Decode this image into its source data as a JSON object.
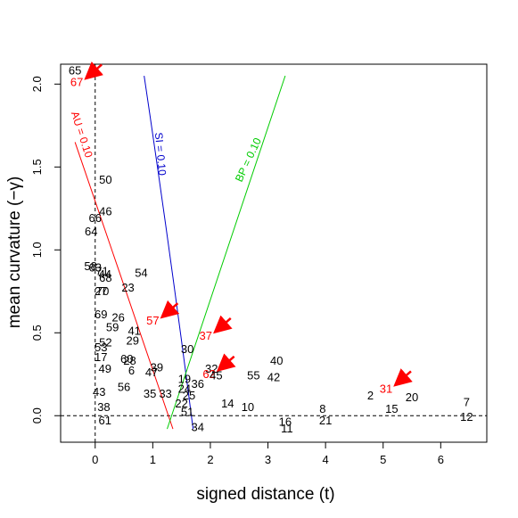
{
  "chart_data": {
    "type": "scatter",
    "title": "",
    "xlabel": "signed distance  (t)",
    "ylabel": "mean curvature  (−γ)",
    "xlim": [
      -0.6,
      6.8
    ],
    "ylim": [
      -0.16,
      2.12
    ],
    "x_ticks": [
      0,
      1,
      2,
      3,
      4,
      5,
      6
    ],
    "y_ticks": [
      0.0,
      0.5,
      1.0,
      1.5,
      2.0
    ],
    "x_tick_labels": [
      "0",
      "1",
      "2",
      "3",
      "4",
      "5",
      "6"
    ],
    "y_tick_labels": [
      "0.0",
      "0.5",
      "1.0",
      "1.5",
      "2.0"
    ],
    "reference_lines": [
      {
        "orientation": "horizontal",
        "value": 0,
        "style": "dashed"
      },
      {
        "orientation": "vertical",
        "value": 0,
        "style": "dashed"
      }
    ],
    "curves": [
      {
        "label": "AU = 0.10",
        "color": "#ff0000",
        "points": [
          [
            -0.35,
            1.65
          ],
          [
            1.35,
            -0.08
          ]
        ]
      },
      {
        "label": "SI = 0.10",
        "color": "#0000cc",
        "points": [
          [
            0.85,
            2.05
          ],
          [
            1.3,
            1.0
          ],
          [
            1.7,
            -0.08
          ]
        ]
      },
      {
        "label": "BP = 0.10",
        "color": "#00cc00",
        "points": [
          [
            1.25,
            -0.08
          ],
          [
            3.3,
            2.05
          ]
        ]
      }
    ],
    "points": [
      {
        "label": "65",
        "x": -0.35,
        "y": 2.08,
        "color": "#000000"
      },
      {
        "label": "67",
        "x": -0.32,
        "y": 2.01,
        "color": "#ff0000"
      },
      {
        "label": "50",
        "x": 0.18,
        "y": 1.42,
        "color": "#000000"
      },
      {
        "label": "46",
        "x": 0.18,
        "y": 1.23,
        "color": "#000000"
      },
      {
        "label": "66",
        "x": 0.0,
        "y": 1.19,
        "color": "#000000"
      },
      {
        "label": "64",
        "x": -0.07,
        "y": 1.11,
        "color": "#000000"
      },
      {
        "label": "58",
        "x": -0.08,
        "y": 0.9,
        "color": "#000000"
      },
      {
        "label": "63",
        "x": 0.0,
        "y": 0.89,
        "color": "#000000"
      },
      {
        "label": "71",
        "x": 0.12,
        "y": 0.87,
        "color": "#000000"
      },
      {
        "label": "44",
        "x": 0.17,
        "y": 0.85,
        "color": "#000000"
      },
      {
        "label": "68",
        "x": 0.18,
        "y": 0.83,
        "color": "#000000"
      },
      {
        "label": "54",
        "x": 0.8,
        "y": 0.86,
        "color": "#000000"
      },
      {
        "label": "23",
        "x": 0.57,
        "y": 0.77,
        "color": "#000000"
      },
      {
        "label": "27",
        "x": 0.1,
        "y": 0.75,
        "color": "#000000"
      },
      {
        "label": "70",
        "x": 0.13,
        "y": 0.75,
        "color": "#000000"
      },
      {
        "label": "69",
        "x": 0.1,
        "y": 0.61,
        "color": "#000000"
      },
      {
        "label": "26",
        "x": 0.4,
        "y": 0.59,
        "color": "#000000"
      },
      {
        "label": "57",
        "x": 1.0,
        "y": 0.57,
        "color": "#ff0000"
      },
      {
        "label": "59",
        "x": 0.3,
        "y": 0.53,
        "color": "#000000"
      },
      {
        "label": "41",
        "x": 0.68,
        "y": 0.51,
        "color": "#000000"
      },
      {
        "label": "37",
        "x": 1.92,
        "y": 0.48,
        "color": "#ff0000"
      },
      {
        "label": "29",
        "x": 0.65,
        "y": 0.45,
        "color": "#000000"
      },
      {
        "label": "52",
        "x": 0.18,
        "y": 0.44,
        "color": "#000000"
      },
      {
        "label": "53",
        "x": 0.1,
        "y": 0.41,
        "color": "#000000"
      },
      {
        "label": "30",
        "x": 1.6,
        "y": 0.4,
        "color": "#000000"
      },
      {
        "label": "17",
        "x": 0.1,
        "y": 0.35,
        "color": "#000000"
      },
      {
        "label": "60",
        "x": 0.55,
        "y": 0.34,
        "color": "#000000"
      },
      {
        "label": "28",
        "x": 0.6,
        "y": 0.33,
        "color": "#000000"
      },
      {
        "label": "40",
        "x": 3.15,
        "y": 0.33,
        "color": "#000000"
      },
      {
        "label": "49",
        "x": 0.17,
        "y": 0.28,
        "color": "#000000"
      },
      {
        "label": "6",
        "x": 0.63,
        "y": 0.27,
        "color": "#000000"
      },
      {
        "label": "39",
        "x": 1.07,
        "y": 0.29,
        "color": "#000000"
      },
      {
        "label": "47",
        "x": 0.98,
        "y": 0.26,
        "color": "#000000"
      },
      {
        "label": "32",
        "x": 2.02,
        "y": 0.28,
        "color": "#000000"
      },
      {
        "label": "62",
        "x": 1.98,
        "y": 0.25,
        "color": "#ff0000"
      },
      {
        "label": "45",
        "x": 2.1,
        "y": 0.24,
        "color": "#000000"
      },
      {
        "label": "55",
        "x": 2.75,
        "y": 0.24,
        "color": "#000000"
      },
      {
        "label": "42",
        "x": 3.1,
        "y": 0.23,
        "color": "#000000"
      },
      {
        "label": "19",
        "x": 1.55,
        "y": 0.22,
        "color": "#000000"
      },
      {
        "label": "36",
        "x": 1.78,
        "y": 0.19,
        "color": "#000000"
      },
      {
        "label": "56",
        "x": 0.5,
        "y": 0.17,
        "color": "#000000"
      },
      {
        "label": "24",
        "x": 1.55,
        "y": 0.16,
        "color": "#000000"
      },
      {
        "label": "31",
        "x": 5.05,
        "y": 0.16,
        "color": "#ff0000"
      },
      {
        "label": "43",
        "x": 0.07,
        "y": 0.14,
        "color": "#000000"
      },
      {
        "label": "35",
        "x": 0.95,
        "y": 0.13,
        "color": "#000000"
      },
      {
        "label": "33",
        "x": 1.22,
        "y": 0.13,
        "color": "#000000"
      },
      {
        "label": "25",
        "x": 1.63,
        "y": 0.12,
        "color": "#000000"
      },
      {
        "label": "2",
        "x": 4.78,
        "y": 0.12,
        "color": "#000000"
      },
      {
        "label": "20",
        "x": 5.5,
        "y": 0.11,
        "color": "#000000"
      },
      {
        "label": "22",
        "x": 1.5,
        "y": 0.07,
        "color": "#000000"
      },
      {
        "label": "14",
        "x": 2.3,
        "y": 0.07,
        "color": "#000000"
      },
      {
        "label": "7",
        "x": 6.45,
        "y": 0.08,
        "color": "#000000"
      },
      {
        "label": "38",
        "x": 0.15,
        "y": 0.05,
        "color": "#000000"
      },
      {
        "label": "10",
        "x": 2.65,
        "y": 0.05,
        "color": "#000000"
      },
      {
        "label": "8",
        "x": 3.95,
        "y": 0.04,
        "color": "#000000"
      },
      {
        "label": "15",
        "x": 5.15,
        "y": 0.04,
        "color": "#000000"
      },
      {
        "label": "51",
        "x": 1.6,
        "y": 0.02,
        "color": "#000000"
      },
      {
        "label": "12",
        "x": 6.45,
        "y": -0.01,
        "color": "#000000"
      },
      {
        "label": "61",
        "x": 0.17,
        "y": -0.03,
        "color": "#000000"
      },
      {
        "label": "21",
        "x": 4.0,
        "y": -0.03,
        "color": "#000000"
      },
      {
        "label": "16",
        "x": 3.3,
        "y": -0.04,
        "color": "#000000"
      },
      {
        "label": "11",
        "x": 3.33,
        "y": -0.08,
        "color": "#000000"
      },
      {
        "label": "34",
        "x": 1.78,
        "y": -0.07,
        "color": "#000000"
      }
    ],
    "highlighted": [
      "67",
      "57",
      "37",
      "62",
      "31"
    ],
    "arrow_color": "#ff0000",
    "grid": false
  }
}
